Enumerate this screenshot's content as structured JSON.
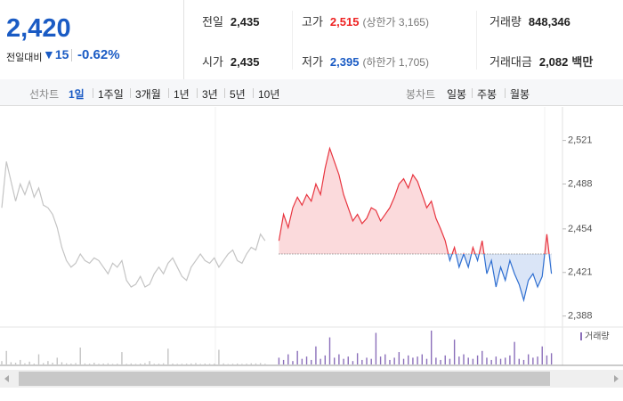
{
  "header": {
    "price": "2,420",
    "change_label": "전일대비",
    "change": "15",
    "change_rate": "-0.62%"
  },
  "info": {
    "rows": [
      [
        {
          "label": "전일",
          "value": "2,435"
        },
        {
          "label": "고가",
          "value": "2,515",
          "note": "(상한가 3,165)"
        },
        {
          "label": "거래량",
          "value": "848,346"
        }
      ],
      [
        {
          "label": "시가",
          "value": "2,435"
        },
        {
          "label": "저가",
          "value": "2,395",
          "note": "(하한가 1,705)"
        },
        {
          "label": "거래대금",
          "value": "2,082",
          "unit": "백만"
        }
      ]
    ]
  },
  "tabs": {
    "line_label": "선차트",
    "line": [
      "1일",
      "1주일",
      "3개월",
      "1년",
      "3년",
      "5년",
      "10년"
    ],
    "candle_label": "봉차트",
    "candle": [
      "일봉",
      "주봉",
      "월봉"
    ]
  },
  "chart_data": {
    "type": "line",
    "ylim": [
      2381,
      2543
    ],
    "yticks": [
      {
        "value": 2521,
        "label": "2,521"
      },
      {
        "value": 2488,
        "label": "2,488"
      },
      {
        "value": 2454,
        "label": "2,454"
      },
      {
        "value": 2421,
        "label": "2,421"
      },
      {
        "value": 2388,
        "label": "2,388"
      }
    ],
    "grid": false,
    "baseline": 2435,
    "series": [
      {
        "color": "#c4c4c4",
        "values": [
          2470,
          2505,
          2490,
          2475,
          2488,
          2480,
          2490,
          2478,
          2485,
          2472,
          2470,
          2465,
          2455,
          2440,
          2430,
          2425,
          2428,
          2435,
          2430,
          2428,
          2432,
          2430,
          2425,
          2420,
          2428,
          2425,
          2430,
          2415,
          2410,
          2412,
          2418,
          2410,
          2412,
          2420,
          2425,
          2420,
          2428,
          2432,
          2425,
          2418,
          2415,
          2425,
          2430,
          2435,
          2430,
          2428,
          2432,
          2425,
          2430,
          2435,
          2438,
          2430,
          2428,
          2435,
          2440,
          2438,
          2450,
          2445,
          null,
          null,
          null,
          null,
          null,
          null,
          null,
          null,
          null,
          null,
          null,
          null,
          null,
          null,
          null,
          null,
          null,
          null,
          null,
          null,
          null,
          null,
          null,
          null,
          null,
          null,
          null,
          null,
          null,
          null,
          null,
          null,
          null,
          null,
          null,
          null,
          null,
          null,
          null,
          null,
          null,
          null,
          null,
          null,
          null,
          null,
          null,
          null,
          null,
          null,
          null,
          null,
          null,
          null,
          null,
          null,
          null,
          null,
          null,
          null,
          null,
          null,
          null,
          null
        ]
      },
      {
        "color": "#e8343f",
        "down_color": "#2f6fd1",
        "values": [
          null,
          null,
          null,
          null,
          null,
          null,
          null,
          null,
          null,
          null,
          null,
          null,
          null,
          null,
          null,
          null,
          null,
          null,
          null,
          null,
          null,
          null,
          null,
          null,
          null,
          null,
          null,
          null,
          null,
          null,
          null,
          null,
          null,
          null,
          null,
          null,
          null,
          null,
          null,
          null,
          null,
          null,
          null,
          null,
          null,
          null,
          null,
          null,
          null,
          null,
          null,
          null,
          null,
          null,
          null,
          null,
          null,
          null,
          null,
          null,
          2445,
          2465,
          2455,
          2470,
          2478,
          2472,
          2480,
          2475,
          2488,
          2480,
          2500,
          2515,
          2505,
          2495,
          2480,
          2470,
          2460,
          2465,
          2458,
          2462,
          2470,
          2468,
          2460,
          2465,
          2470,
          2478,
          2488,
          2492,
          2485,
          2495,
          2490,
          2480,
          2470,
          2475,
          2462,
          2454,
          2445,
          2430,
          2440,
          2425,
          2435,
          2425,
          2440,
          2430,
          2445,
          2420,
          2430,
          2410,
          2425,
          2415,
          2430,
          2420,
          2412,
          2400,
          2415,
          2420,
          2410,
          2418,
          2450,
          2420
        ]
      }
    ],
    "volume": {
      "name": "거래량",
      "color": "#8b6fba",
      "values": [
        3000,
        12000,
        2000,
        1500,
        4000,
        1000,
        2500,
        800,
        9000,
        1200,
        3000,
        1500,
        6000,
        2000,
        1000,
        800,
        1200,
        15000,
        900,
        700,
        1500,
        600,
        800,
        1000,
        500,
        700,
        11000,
        600,
        900,
        500,
        800,
        1200,
        3000,
        600,
        700,
        1000,
        14000,
        800,
        500,
        600,
        700,
        900,
        1200,
        500,
        800,
        600,
        700,
        13000,
        900,
        400,
        600,
        800,
        500,
        700,
        1000,
        900,
        1200,
        600,
        0,
        0,
        6000,
        4000,
        9000,
        3000,
        12000,
        5000,
        7000,
        4000,
        16000,
        5000,
        8000,
        24000,
        6000,
        9000,
        5000,
        7000,
        3000,
        10000,
        4000,
        6000,
        5000,
        28000,
        7000,
        9000,
        4000,
        6000,
        11000,
        5000,
        8000,
        6000,
        7000,
        9000,
        5000,
        30000,
        6000,
        4000,
        8000,
        5000,
        22000,
        7000,
        9000,
        6000,
        5000,
        8000,
        12000,
        6000,
        4000,
        7000,
        5000,
        6000,
        8000,
        20000,
        5000,
        4000,
        9000,
        6000,
        7000,
        16000,
        8000,
        10000
      ]
    }
  }
}
